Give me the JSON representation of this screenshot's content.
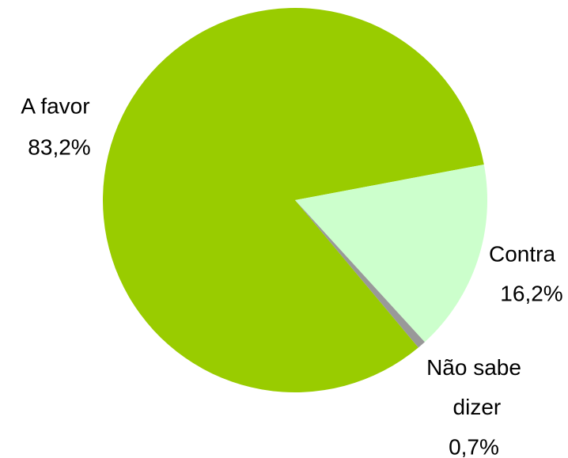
{
  "chart_data": {
    "type": "pie",
    "categories": [
      "A favor",
      "Contra",
      "Não sabe dizer"
    ],
    "values": [
      83.2,
      16.2,
      0.7
    ],
    "value_labels": [
      "83,2%",
      "16,2%",
      "0,7%"
    ],
    "colors": [
      "#99cc00",
      "#ccffcc",
      "#999999"
    ]
  }
}
